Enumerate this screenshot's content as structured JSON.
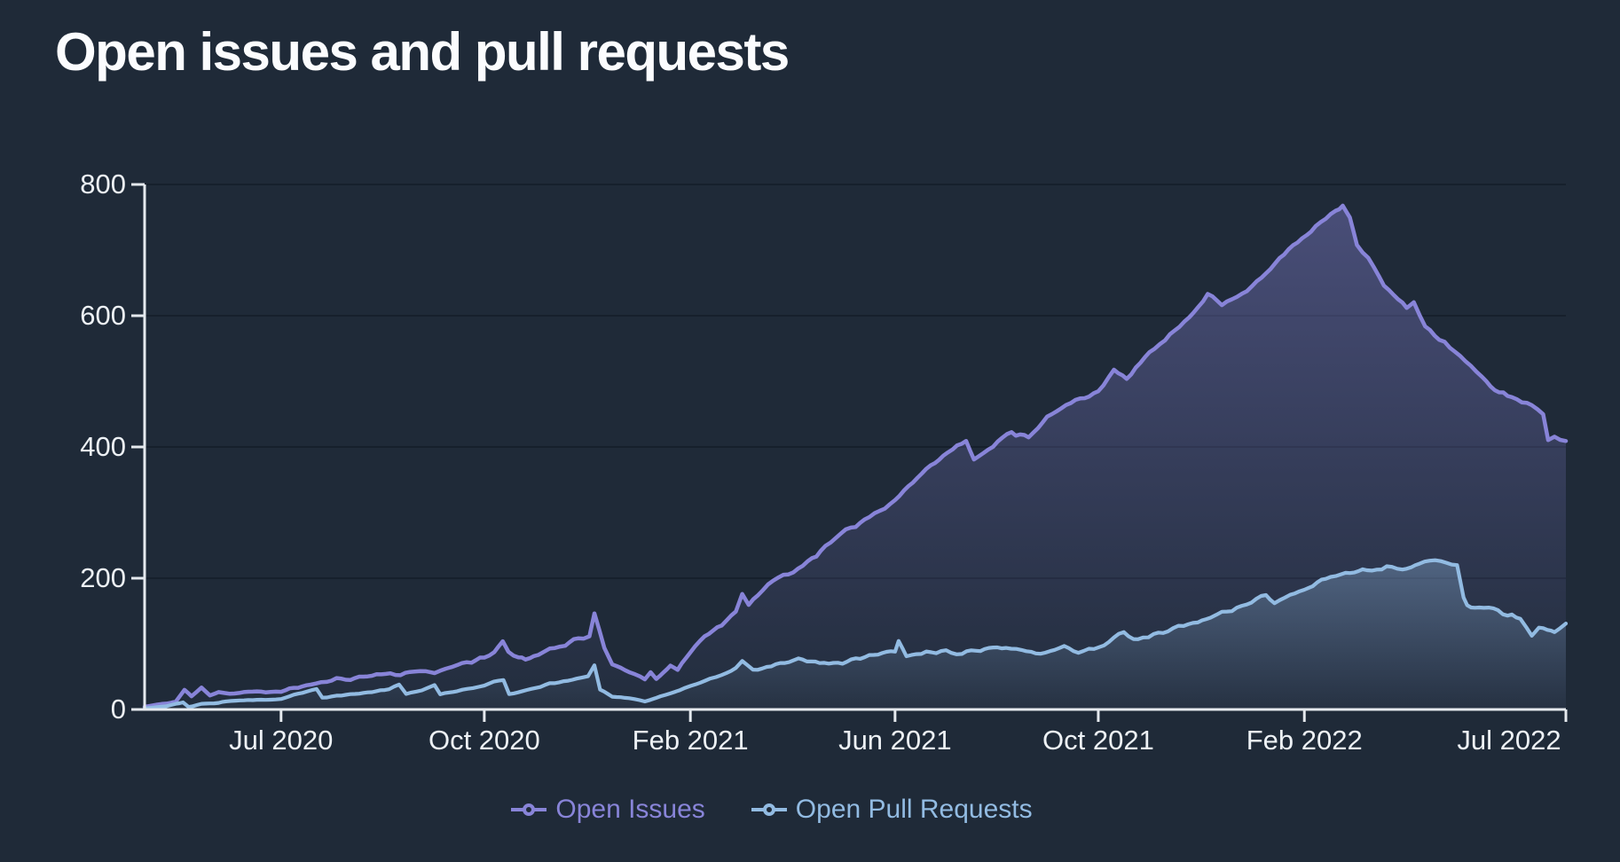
{
  "chart_data": {
    "type": "line",
    "title": "Open issues and pull requests",
    "legend_position": "bottom",
    "grid": true,
    "colors": {
      "background": "#1F2A38",
      "axis": "#E5E9EE",
      "grid": "rgba(9,15,23,0.5)",
      "tick_text": "#EDF1F5",
      "title_text": "#FBFCFE"
    },
    "x_axis": {
      "ticks": [
        {
          "label": "Jul 2020",
          "pos": 0.096
        },
        {
          "label": "Oct 2020",
          "pos": 0.239
        },
        {
          "label": "Feb 2021",
          "pos": 0.384
        },
        {
          "label": "Jun 2021",
          "pos": 0.528
        },
        {
          "label": "Oct 2021",
          "pos": 0.671
        },
        {
          "label": "Feb 2022",
          "pos": 0.816
        },
        {
          "label": "Jul 2022",
          "pos": 1.0
        }
      ]
    },
    "y_axis": {
      "min": 0,
      "max": 800,
      "ticks": [
        0,
        200,
        400,
        600,
        800
      ],
      "tick_labels": [
        "0",
        "200",
        "400",
        "600",
        "800"
      ]
    },
    "series": [
      {
        "name": "Open Issues",
        "color": "#8884D8",
        "fill_top_opacity": 0.4,
        "fill_bottom_opacity": 0.03,
        "line_width": 4.5,
        "jitter": 6.5,
        "seed": 11,
        "points": [
          [
            0,
            4
          ],
          [
            0.012,
            8
          ],
          [
            0.022,
            12
          ],
          [
            0.028,
            30
          ],
          [
            0.033,
            20
          ],
          [
            0.04,
            33
          ],
          [
            0.046,
            22
          ],
          [
            0.052,
            27
          ],
          [
            0.06,
            24
          ],
          [
            0.073,
            27
          ],
          [
            0.085,
            26
          ],
          [
            0.096,
            28
          ],
          [
            0.108,
            34
          ],
          [
            0.117,
            38
          ],
          [
            0.128,
            42
          ],
          [
            0.135,
            46
          ],
          [
            0.148,
            48
          ],
          [
            0.16,
            52
          ],
          [
            0.173,
            56
          ],
          [
            0.18,
            52
          ],
          [
            0.19,
            58
          ],
          [
            0.198,
            60
          ],
          [
            0.204,
            55
          ],
          [
            0.212,
            62
          ],
          [
            0.22,
            68
          ],
          [
            0.23,
            74
          ],
          [
            0.239,
            80
          ],
          [
            0.246,
            88
          ],
          [
            0.252,
            102
          ],
          [
            0.256,
            86
          ],
          [
            0.263,
            78
          ],
          [
            0.268,
            76
          ],
          [
            0.277,
            85
          ],
          [
            0.285,
            92
          ],
          [
            0.296,
            101
          ],
          [
            0.305,
            108
          ],
          [
            0.313,
            112
          ],
          [
            0.3165,
            146
          ],
          [
            0.32,
            120
          ],
          [
            0.3235,
            92
          ],
          [
            0.329,
            68
          ],
          [
            0.338,
            61
          ],
          [
            0.345,
            53
          ],
          [
            0.352,
            45
          ],
          [
            0.356,
            57
          ],
          [
            0.36,
            48
          ],
          [
            0.365,
            55
          ],
          [
            0.37,
            66
          ],
          [
            0.375,
            60
          ],
          [
            0.384,
            89
          ],
          [
            0.394,
            111
          ],
          [
            0.406,
            130
          ],
          [
            0.416,
            150
          ],
          [
            0.4205,
            176
          ],
          [
            0.425,
            157
          ],
          [
            0.435,
            184
          ],
          [
            0.446,
            200
          ],
          [
            0.46,
            215
          ],
          [
            0.479,
            247
          ],
          [
            0.497,
            277
          ],
          [
            0.51,
            294
          ],
          [
            0.528,
            320
          ],
          [
            0.547,
            360
          ],
          [
            0.562,
            387
          ],
          [
            0.578,
            411
          ],
          [
            0.5835,
            381
          ],
          [
            0.597,
            401
          ],
          [
            0.61,
            423
          ],
          [
            0.622,
            417
          ],
          [
            0.635,
            444
          ],
          [
            0.655,
            471
          ],
          [
            0.671,
            486
          ],
          [
            0.682,
            514
          ],
          [
            0.691,
            504
          ],
          [
            0.707,
            544
          ],
          [
            0.718,
            561
          ],
          [
            0.735,
            599
          ],
          [
            0.748,
            633
          ],
          [
            0.758,
            617
          ],
          [
            0.772,
            633
          ],
          [
            0.786,
            660
          ],
          [
            0.808,
            706
          ],
          [
            0.824,
            735
          ],
          [
            0.838,
            762
          ],
          [
            0.843,
            768
          ],
          [
            0.848,
            751
          ],
          [
            0.853,
            708
          ],
          [
            0.861,
            689
          ],
          [
            0.872,
            645
          ],
          [
            0.879,
            631
          ],
          [
            0.888,
            611
          ],
          [
            0.893,
            621
          ],
          [
            0.901,
            585
          ],
          [
            0.911,
            563
          ],
          [
            0.922,
            545
          ],
          [
            0.933,
            523
          ],
          [
            0.941,
            504
          ],
          [
            0.953,
            483
          ],
          [
            0.962,
            477
          ],
          [
            0.976,
            463
          ],
          [
            0.984,
            449
          ],
          [
            0.9875,
            411
          ],
          [
            0.992,
            419
          ],
          [
            1,
            409
          ]
        ]
      },
      {
        "name": "Open Pull Requests",
        "color": "#92BBE2",
        "fill_top_opacity": 0.34,
        "fill_bottom_opacity": 0.03,
        "line_width": 4.2,
        "jitter": 5,
        "seed": 29,
        "points": [
          [
            0,
            2
          ],
          [
            0.015,
            5
          ],
          [
            0.022,
            9
          ],
          [
            0.027,
            11
          ],
          [
            0.031,
            4
          ],
          [
            0.04,
            8
          ],
          [
            0.052,
            10
          ],
          [
            0.061,
            13
          ],
          [
            0.073,
            15
          ],
          [
            0.085,
            15
          ],
          [
            0.096,
            16
          ],
          [
            0.105,
            22
          ],
          [
            0.114,
            27
          ],
          [
            0.121,
            31
          ],
          [
            0.125,
            18
          ],
          [
            0.135,
            21
          ],
          [
            0.148,
            24
          ],
          [
            0.16,
            27
          ],
          [
            0.172,
            31
          ],
          [
            0.179,
            38
          ],
          [
            0.184,
            24
          ],
          [
            0.195,
            29
          ],
          [
            0.204,
            37
          ],
          [
            0.208,
            23
          ],
          [
            0.22,
            28
          ],
          [
            0.231,
            33
          ],
          [
            0.239,
            37
          ],
          [
            0.249,
            43
          ],
          [
            0.2525,
            45
          ],
          [
            0.2565,
            24
          ],
          [
            0.266,
            28
          ],
          [
            0.275,
            33
          ],
          [
            0.285,
            39
          ],
          [
            0.295,
            43
          ],
          [
            0.304,
            46
          ],
          [
            0.312,
            50
          ],
          [
            0.3165,
            67
          ],
          [
            0.3205,
            30
          ],
          [
            0.329,
            20
          ],
          [
            0.341,
            17
          ],
          [
            0.352,
            12
          ],
          [
            0.363,
            20
          ],
          [
            0.373,
            27
          ],
          [
            0.384,
            36
          ],
          [
            0.398,
            46
          ],
          [
            0.406,
            53
          ],
          [
            0.416,
            63
          ],
          [
            0.4205,
            74
          ],
          [
            0.428,
            60
          ],
          [
            0.441,
            67
          ],
          [
            0.46,
            77
          ],
          [
            0.475,
            70
          ],
          [
            0.491,
            72
          ],
          [
            0.513,
            82
          ],
          [
            0.528,
            88
          ],
          [
            0.5305,
            105
          ],
          [
            0.536,
            80
          ],
          [
            0.55,
            86
          ],
          [
            0.564,
            90
          ],
          [
            0.575,
            84
          ],
          [
            0.585,
            89
          ],
          [
            0.597,
            92
          ],
          [
            0.606,
            95
          ],
          [
            0.617,
            88
          ],
          [
            0.627,
            84
          ],
          [
            0.637,
            91
          ],
          [
            0.647,
            96
          ],
          [
            0.657,
            88
          ],
          [
            0.668,
            90
          ],
          [
            0.689,
            117
          ],
          [
            0.699,
            107
          ],
          [
            0.71,
            114
          ],
          [
            0.72,
            121
          ],
          [
            0.731,
            126
          ],
          [
            0.741,
            133
          ],
          [
            0.75,
            140
          ],
          [
            0.758,
            147
          ],
          [
            0.772,
            157
          ],
          [
            0.789,
            175
          ],
          [
            0.795,
            163
          ],
          [
            0.806,
            176
          ],
          [
            0.816,
            185
          ],
          [
            0.831,
            199
          ],
          [
            0.845,
            207
          ],
          [
            0.86,
            213
          ],
          [
            0.874,
            219
          ],
          [
            0.885,
            211
          ],
          [
            0.897,
            221
          ],
          [
            0.908,
            227
          ],
          [
            0.916,
            221
          ],
          [
            0.9235,
            220
          ],
          [
            0.928,
            170
          ],
          [
            0.9305,
            159
          ],
          [
            0.939,
            157
          ],
          [
            0.949,
            151
          ],
          [
            0.959,
            143
          ],
          [
            0.968,
            139
          ],
          [
            0.976,
            113
          ],
          [
            0.981,
            127
          ],
          [
            0.987,
            121
          ],
          [
            0.992,
            117
          ],
          [
            1,
            131
          ]
        ]
      }
    ]
  }
}
